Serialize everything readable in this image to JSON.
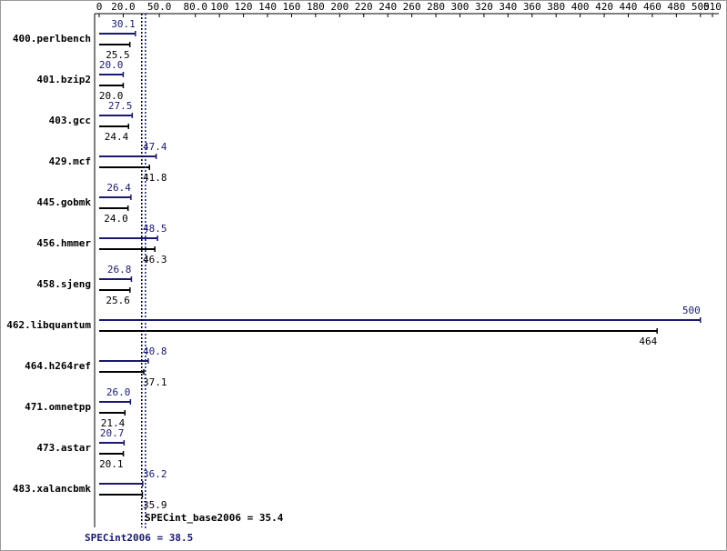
{
  "chart_data": {
    "type": "hbar",
    "categories": [
      "400.perlbench",
      "401.bzip2",
      "403.gcc",
      "429.mcf",
      "445.gobmk",
      "456.hmmer",
      "458.sjeng",
      "462.libquantum",
      "464.h264ref",
      "471.omnetpp",
      "473.astar",
      "483.xalancbmk"
    ],
    "series": [
      {
        "name": "SPECint2006 = 38.5",
        "color": "#191970",
        "mean": 38.5,
        "values": [
          30.1,
          20.0,
          27.5,
          47.4,
          26.4,
          48.5,
          26.8,
          500,
          40.8,
          26.0,
          20.7,
          36.2
        ],
        "value_labels": [
          "30.1",
          "20.0",
          "27.5",
          "47.4",
          "26.4",
          "48.5",
          "26.8",
          "500",
          "40.8",
          "26.0",
          "20.7",
          "36.2"
        ]
      },
      {
        "name": "SPECint_base2006 = 35.4",
        "color": "#000000",
        "mean": 35.4,
        "values": [
          25.5,
          20.0,
          24.4,
          41.8,
          24.0,
          46.3,
          25.6,
          464,
          37.1,
          21.4,
          20.1,
          35.9
        ],
        "value_labels": [
          "25.5",
          "20.0",
          "24.4",
          "41.8",
          "24.0",
          "46.3",
          "25.6",
          "464",
          "37.1",
          "21.4",
          "20.1",
          "35.9"
        ]
      }
    ],
    "xlim": [
      0,
      510
    ],
    "xticks": [
      0,
      {
        "value": 20,
        "label": "20.0"
      },
      {
        "value": 50,
        "label": "50.0"
      },
      {
        "value": 80,
        "label": "80.0"
      },
      100,
      120,
      140,
      160,
      180,
      200,
      220,
      240,
      260,
      280,
      300,
      320,
      340,
      360,
      380,
      400,
      420,
      440,
      460,
      480,
      500,
      510
    ]
  }
}
